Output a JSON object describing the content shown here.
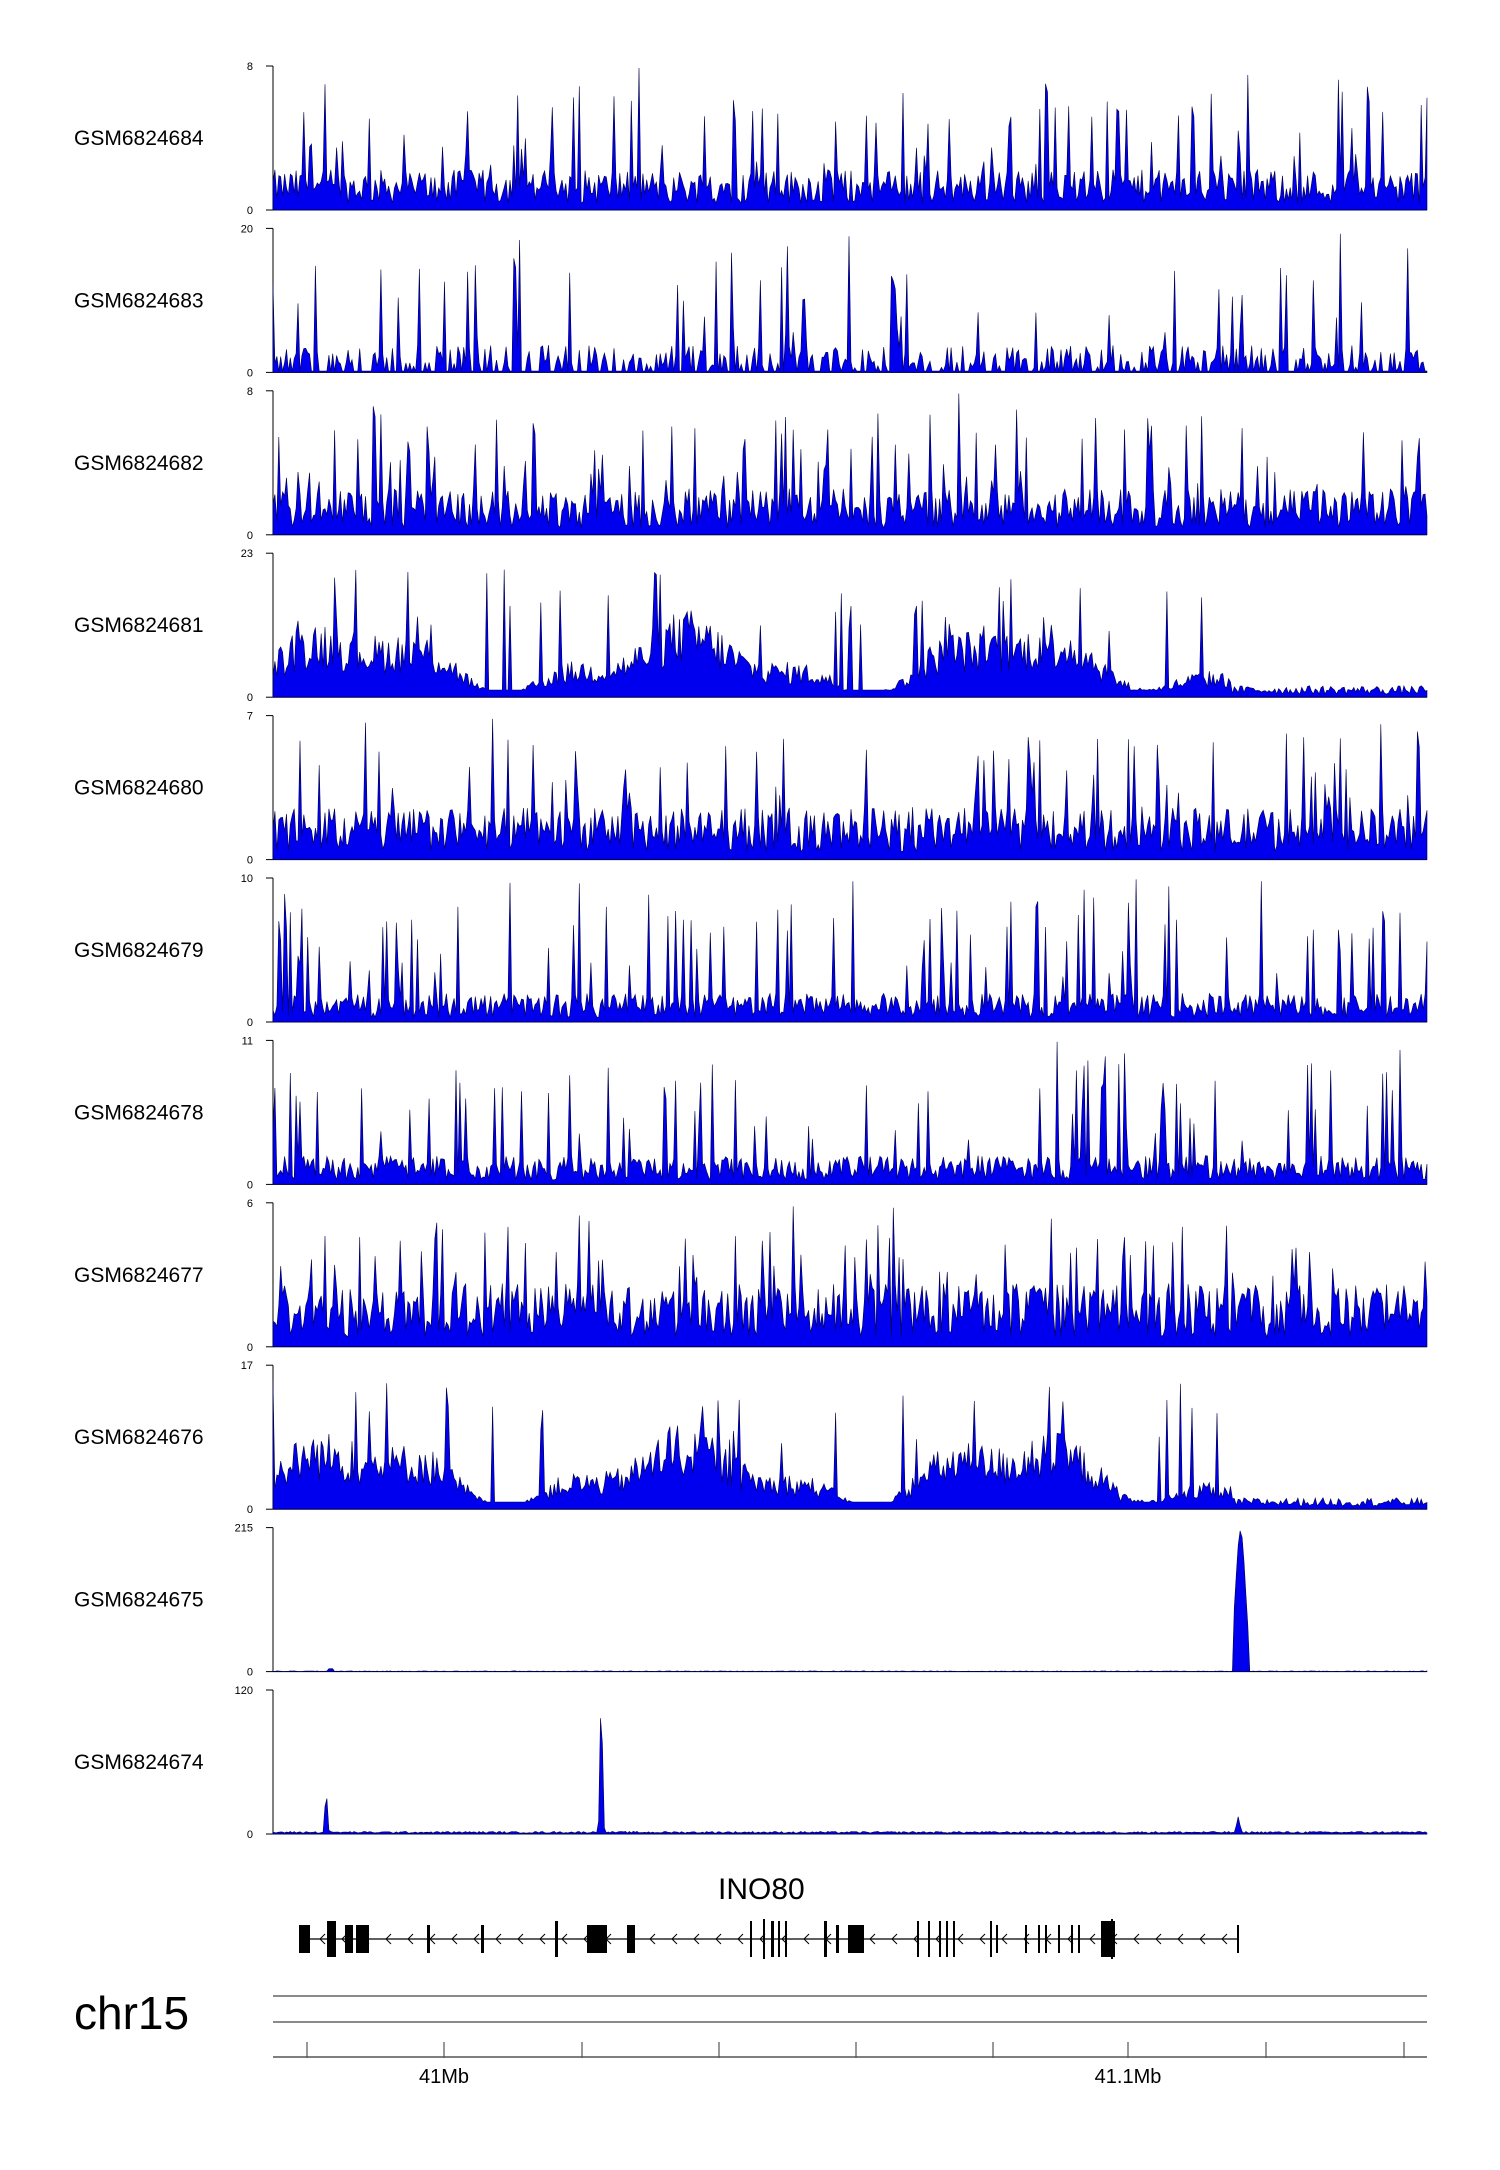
{
  "chart_data": {
    "type": "area",
    "chromosome": "chr15",
    "gene": "INO80",
    "x_tick_labels": [
      "41Mb",
      "41.1Mb"
    ],
    "tracks": [
      {
        "label": "GSM6824684",
        "ymax": 8,
        "pattern": "spiky",
        "base": 0.14
      },
      {
        "label": "GSM6824683",
        "ymax": 20,
        "pattern": "sparse",
        "base": 0.1
      },
      {
        "label": "GSM6824682",
        "ymax": 8,
        "pattern": "spiky",
        "base": 0.16
      },
      {
        "label": "GSM6824681",
        "ymax": 23,
        "pattern": "broad",
        "base": 0.22
      },
      {
        "label": "GSM6824680",
        "ymax": 7,
        "pattern": "spiky",
        "base": 0.18
      },
      {
        "label": "GSM6824679",
        "ymax": 10,
        "pattern": "spiky",
        "base": 0.1
      },
      {
        "label": "GSM6824678",
        "ymax": 11,
        "pattern": "spiky",
        "base": 0.1
      },
      {
        "label": "GSM6824677",
        "ymax": 6,
        "pattern": "spiky",
        "base": 0.22
      },
      {
        "label": "GSM6824676",
        "ymax": 17,
        "pattern": "broad",
        "base": 0.24
      },
      {
        "label": "GSM6824675",
        "ymax": 215,
        "pattern": "peak_end",
        "base": 0.005
      },
      {
        "label": "GSM6824674",
        "ymax": 120,
        "pattern": "peaks_mid",
        "base": 0.012
      }
    ],
    "colors": {
      "signal": "#0000ee",
      "outline": "#00004a",
      "gene": "#000000",
      "axis": "#8a8a8a"
    }
  }
}
